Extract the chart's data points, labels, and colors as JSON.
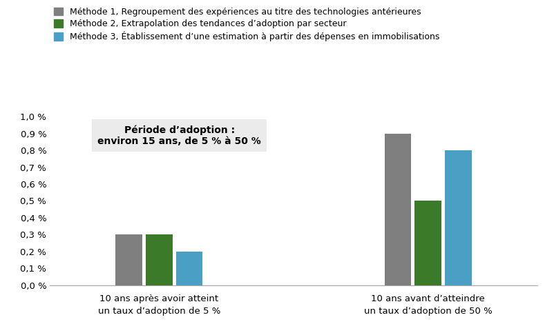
{
  "legend_labels": [
    "Méthode 1, Regroupement des expériences au titre des technologies antérieures",
    "Méthode 2, Extrapolation des tendances d’adoption par secteur",
    "Méthode 3, Établissement d’une estimation à partir des dépenses en immobilisations"
  ],
  "colors": [
    "#7f7f7f",
    "#3a7a29",
    "#4a9fc4"
  ],
  "group_labels": [
    "10 ans après avoir atteint\nun taux d’adoption de 5 %",
    "10 ans avant d’atteindre\nun taux d’adoption de 50 %"
  ],
  "values": [
    [
      0.003,
      0.003,
      0.002
    ],
    [
      0.009,
      0.005,
      0.008
    ]
  ],
  "ylim": [
    0,
    0.01
  ],
  "yticks": [
    0.0,
    0.001,
    0.002,
    0.003,
    0.004,
    0.005,
    0.006,
    0.007,
    0.008,
    0.009,
    0.01
  ],
  "ytick_labels": [
    "0,0 %",
    "0,1 %",
    "0,2 %",
    "0,3 %",
    "0,4 %",
    "0,5 %",
    "0,6 %",
    "0,7 %",
    "0,8 %",
    "0,9 %",
    "1,0 %"
  ],
  "annotation_text": "Période d’adoption :\nenviron 15 ans, de 5 % à 50 %",
  "annotation_bg": "#ebebeb",
  "background_color": "#ffffff",
  "bar_width": 0.18,
  "group_centers": [
    1.0,
    2.6
  ]
}
